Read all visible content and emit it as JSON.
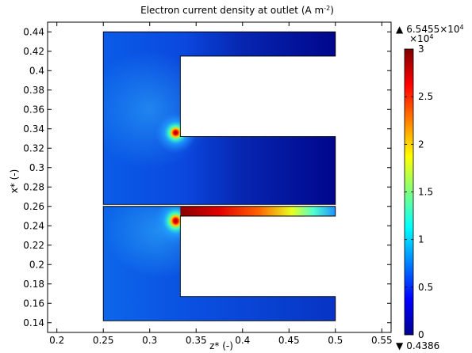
{
  "chart_data": {
    "type": "heatmap",
    "title": "Electron current density at outlet (A m",
    "title_sup": "-2",
    "title_suffix": ")",
    "xlabel": "z* (-)",
    "ylabel": "x* (-)",
    "xlim": [
      0.19,
      0.56
    ],
    "ylim": [
      0.13,
      0.45
    ],
    "x_ticks": [
      "0.2",
      "0.25",
      "0.3",
      "0.35",
      "0.4",
      "0.45",
      "0.5",
      "0.55"
    ],
    "x_tick_values": [
      0.2,
      0.25,
      0.3,
      0.35,
      0.4,
      0.45,
      0.5,
      0.55
    ],
    "y_ticks": [
      "0.14",
      "0.16",
      "0.18",
      "0.2",
      "0.22",
      "0.24",
      "0.26",
      "0.28",
      "0.3",
      "0.32",
      "0.34",
      "0.36",
      "0.38",
      "0.4",
      "0.42",
      "0.44"
    ],
    "y_tick_values": [
      0.14,
      0.16,
      0.18,
      0.2,
      0.22,
      0.24,
      0.26,
      0.28,
      0.3,
      0.32,
      0.34,
      0.36,
      0.38,
      0.4,
      0.42,
      0.44
    ],
    "colorbar": {
      "colormap": "jet",
      "min": 0,
      "max": 3,
      "ticks": [
        "0",
        "0.5",
        "1",
        "1.5",
        "2",
        "2.5",
        "3"
      ],
      "tick_values": [
        0,
        0.5,
        1,
        1.5,
        2,
        2.5,
        3
      ],
      "multiplier_base": "×10",
      "multiplier_exp": "4",
      "max_marker": "▲",
      "max_value": "6.5455×10",
      "max_exp": "4",
      "min_marker": "▼",
      "min_value": "0.4386"
    },
    "geometry": {
      "top_region": {
        "z": [
          0.25,
          0.5
        ],
        "x": [
          0.262,
          0.44
        ],
        "slot": {
          "z": [
            0.333,
            0.5
          ],
          "x": [
            0.332,
            0.415
          ]
        }
      },
      "bottom_region": {
        "z": [
          0.25,
          0.5
        ],
        "x": [
          0.142,
          0.26
        ],
        "slot": {
          "z": [
            0.333,
            0.5
          ],
          "x": [
            0.167,
            0.25
          ]
        }
      }
    },
    "hotspots": [
      {
        "z": 0.328,
        "x": 0.336,
        "value": 3
      },
      {
        "z": 0.328,
        "x": 0.245,
        "value": 3
      },
      {
        "z": 0.4,
        "x": 0.255,
        "value": 2.8
      }
    ]
  }
}
